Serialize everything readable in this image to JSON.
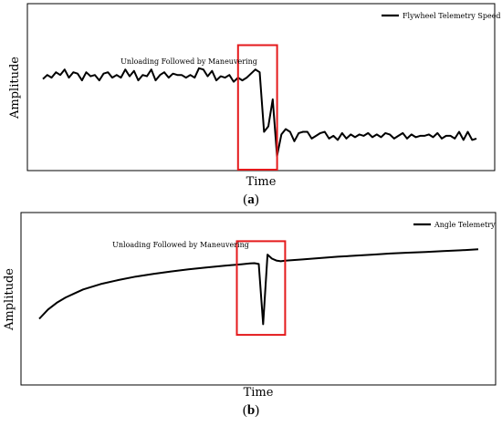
{
  "chart_data": [
    {
      "type": "line",
      "panel": "a",
      "xlabel": "Time",
      "ylabel": "Amplitude",
      "annotation": "Unloading Followed by Maneuvering",
      "highlight_box": {
        "x_range": [
          45,
          54
        ],
        "y_range": [
          -0.2,
          4.4
        ],
        "color": "#e41a1c"
      },
      "legend_position": "top-right",
      "grid": false,
      "xlim": [
        0,
        100
      ],
      "ylim": [
        -0.2,
        5.8
      ],
      "series": [
        {
          "name": "Flywheel Telemetry Speed",
          "color": "#000000",
          "x": [
            0,
            1,
            2,
            3,
            4,
            5,
            6,
            7,
            8,
            9,
            10,
            11,
            12,
            13,
            14,
            15,
            16,
            17,
            18,
            19,
            20,
            21,
            22,
            23,
            24,
            25,
            26,
            27,
            28,
            29,
            30,
            31,
            32,
            33,
            34,
            35,
            36,
            37,
            38,
            39,
            40,
            41,
            42,
            43,
            44,
            45,
            46,
            47,
            48,
            49,
            50,
            51,
            52,
            53,
            54,
            55,
            56,
            57,
            58,
            59,
            60,
            61,
            62,
            63,
            64,
            65,
            66,
            67,
            68,
            69,
            70,
            71,
            72,
            73,
            74,
            75,
            76,
            77,
            78,
            79,
            80,
            81,
            82,
            83,
            84,
            85,
            86,
            87,
            88,
            89,
            90,
            91,
            92,
            93,
            94,
            95,
            96,
            97,
            98,
            99,
            100
          ],
          "y": [
            3.15,
            3.3,
            3.2,
            3.4,
            3.3,
            3.5,
            3.2,
            3.4,
            3.35,
            3.1,
            3.4,
            3.25,
            3.3,
            3.1,
            3.35,
            3.4,
            3.2,
            3.3,
            3.2,
            3.5,
            3.25,
            3.45,
            3.1,
            3.3,
            3.25,
            3.5,
            3.1,
            3.3,
            3.4,
            3.2,
            3.35,
            3.3,
            3.3,
            3.2,
            3.3,
            3.2,
            3.55,
            3.5,
            3.25,
            3.45,
            3.1,
            3.25,
            3.2,
            3.3,
            3.05,
            3.2,
            3.1,
            3.2,
            3.35,
            3.5,
            3.4,
            1.2,
            1.4,
            2.4,
            0.3,
            1.1,
            1.3,
            1.2,
            0.85,
            1.15,
            1.2,
            1.2,
            0.95,
            1.05,
            1.15,
            1.2,
            0.95,
            1.05,
            0.9,
            1.15,
            0.95,
            1.1,
            1.0,
            1.1,
            1.05,
            1.15,
            1.0,
            1.1,
            1.0,
            1.15,
            1.1,
            0.95,
            1.05,
            1.15,
            0.95,
            1.1,
            1.0,
            1.05,
            1.05,
            1.1,
            1.0,
            1.15,
            0.95,
            1.05,
            1.05,
            0.95,
            1.2,
            0.9,
            1.2,
            0.9,
            0.95
          ]
        }
      ]
    },
    {
      "type": "line",
      "panel": "b",
      "xlabel": "Time",
      "ylabel": "Amplitude",
      "annotation": "Unloading Followed by Maneuvering",
      "highlight_box": {
        "x_range": [
          45,
          56
        ],
        "y_range": [
          1.6,
          5.1
        ],
        "color": "#e41a1c"
      },
      "legend_position": "top-right",
      "grid": false,
      "xlim": [
        0,
        100
      ],
      "ylim": [
        -0.2,
        6
      ],
      "series": [
        {
          "name": "Angle Telemetry",
          "color": "#000000",
          "x": [
            0,
            2,
            4,
            6,
            8,
            10,
            14,
            18,
            22,
            26,
            30,
            34,
            38,
            42,
            46,
            48,
            49,
            50,
            51,
            52,
            53,
            54,
            55,
            56,
            60,
            64,
            68,
            72,
            76,
            80,
            84,
            88,
            92,
            96,
            100
          ],
          "y": [
            2.2,
            2.55,
            2.8,
            3.0,
            3.15,
            3.3,
            3.5,
            3.65,
            3.78,
            3.88,
            3.97,
            4.05,
            4.12,
            4.18,
            4.24,
            4.27,
            4.28,
            4.25,
            2.0,
            4.6,
            4.45,
            4.38,
            4.35,
            4.37,
            4.42,
            4.47,
            4.52,
            4.56,
            4.6,
            4.64,
            4.67,
            4.7,
            4.73,
            4.76,
            4.8
          ]
        }
      ]
    }
  ],
  "captions": [
    "a",
    "b"
  ]
}
